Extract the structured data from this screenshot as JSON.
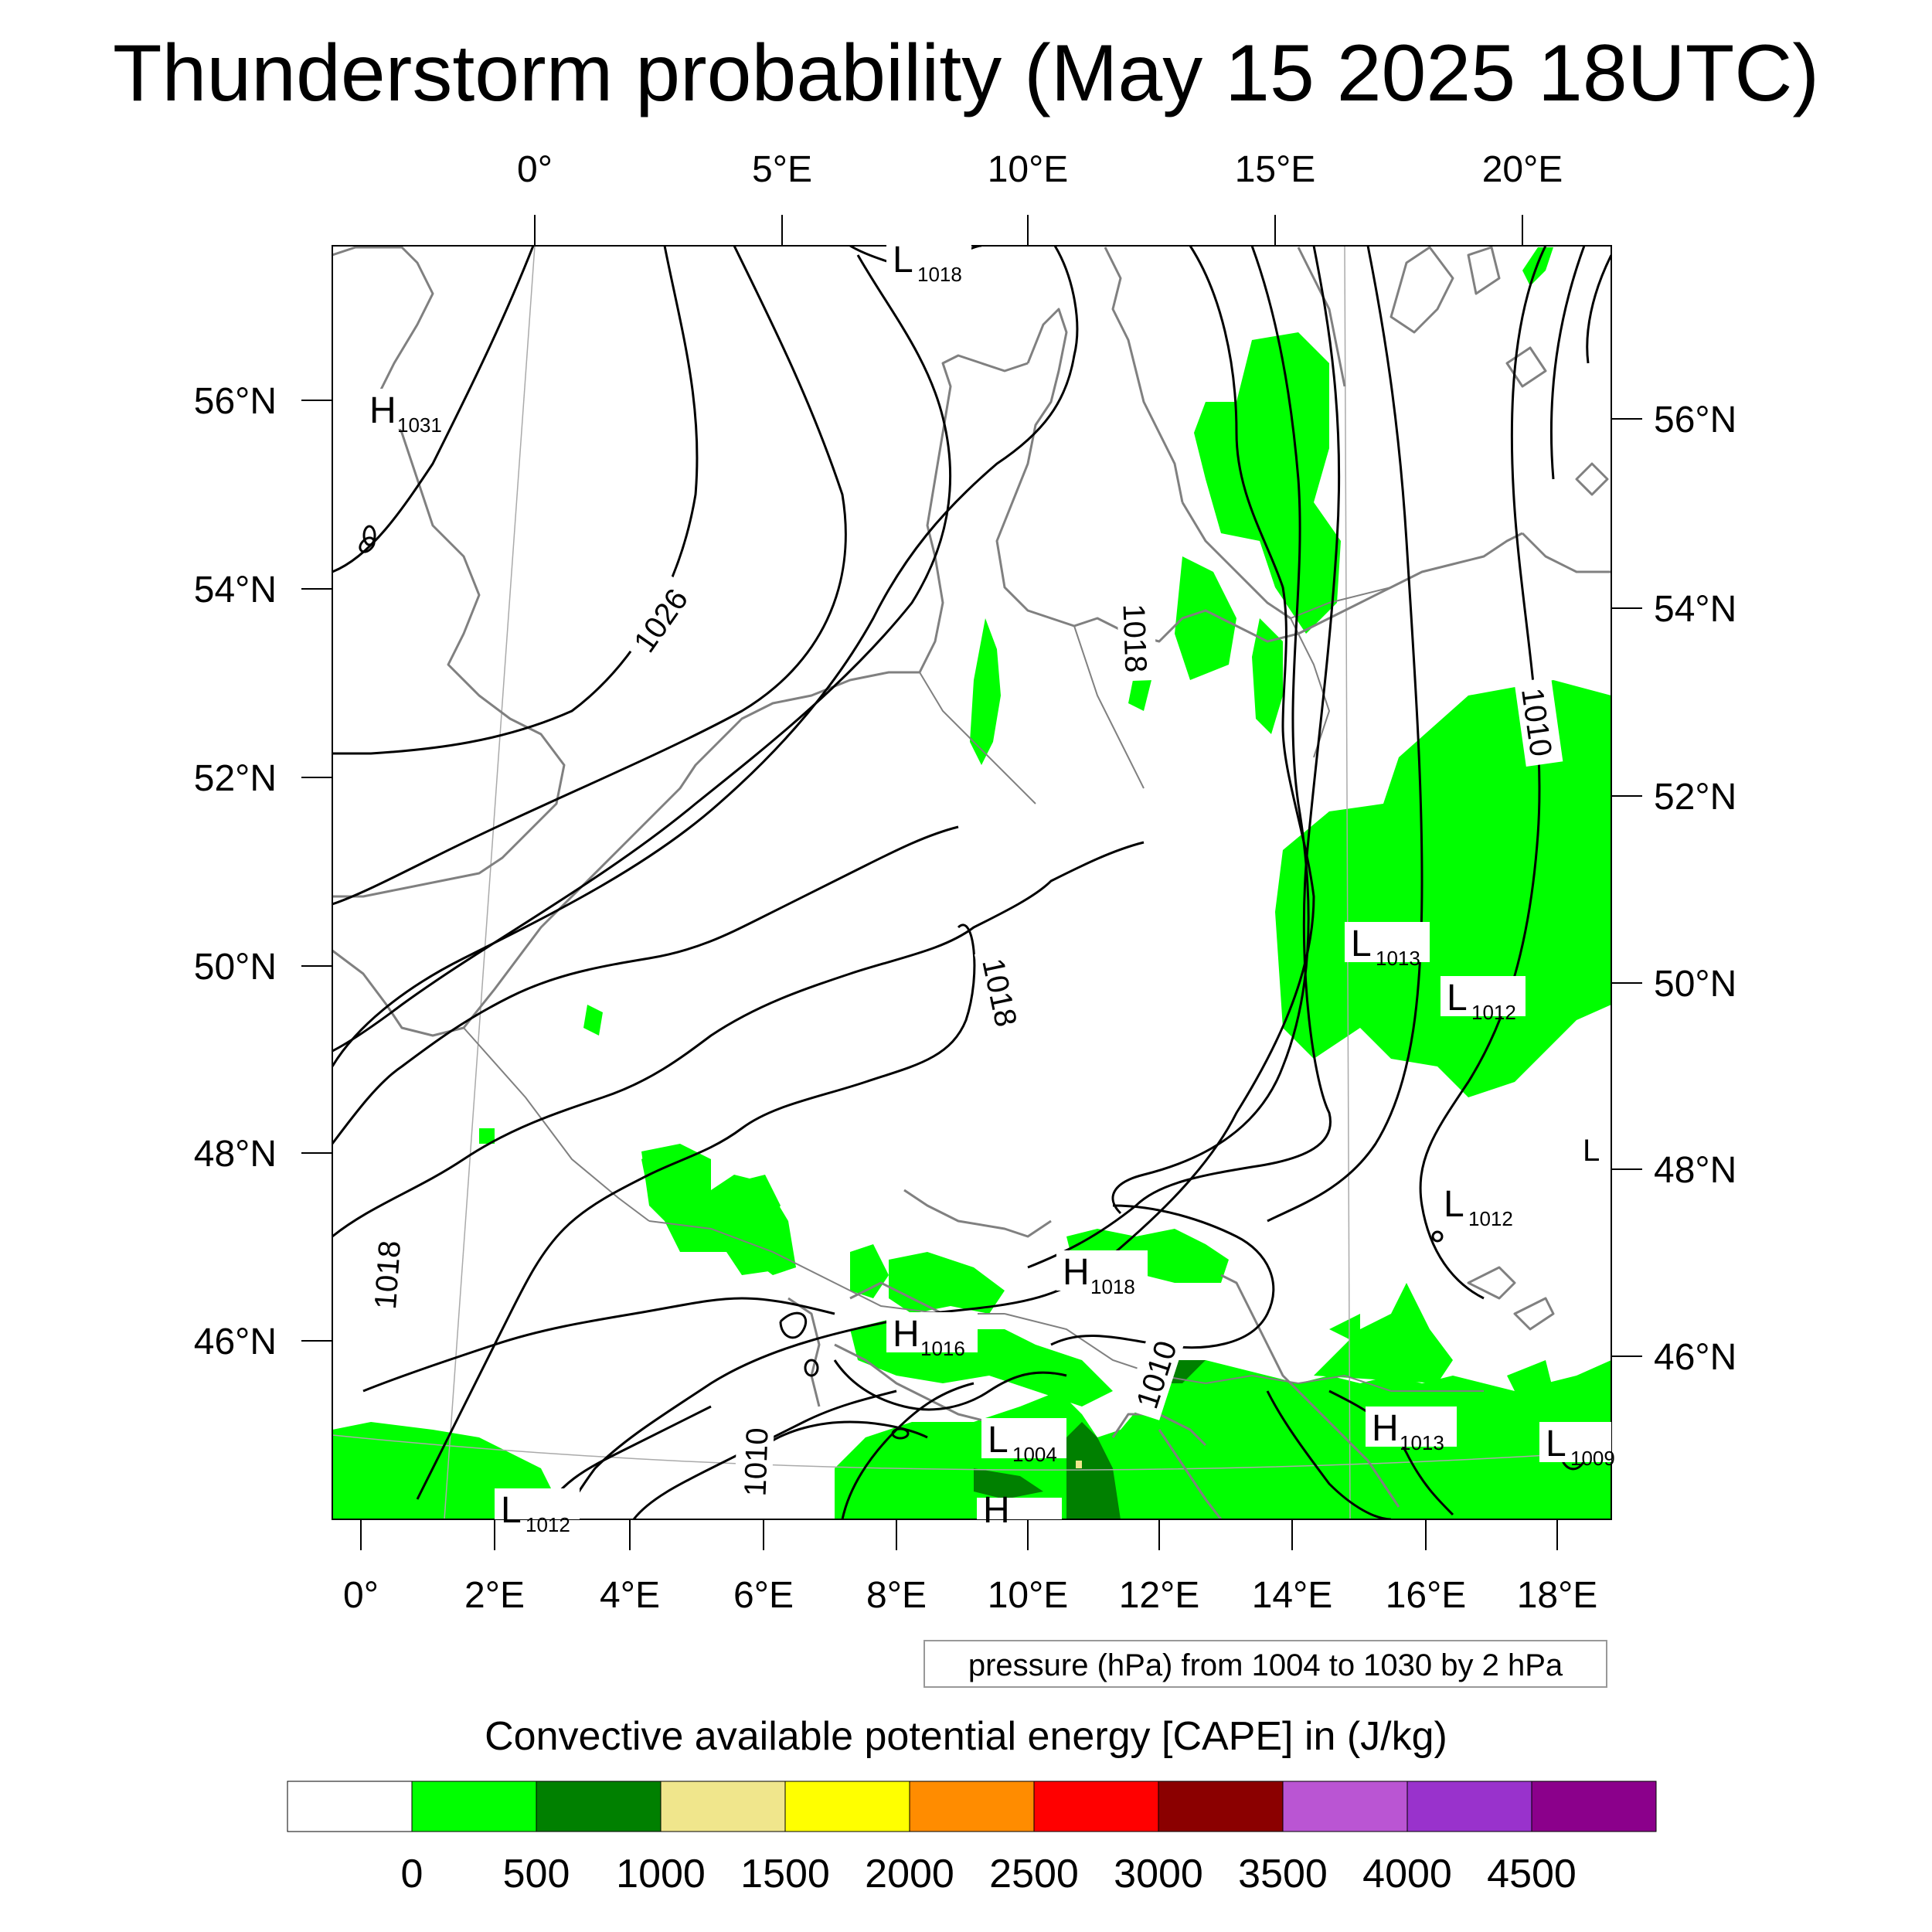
{
  "title": "Thunderstorm probability (May 15 2025 18UTC)",
  "top_lon_labels": [
    "0°",
    "5°E",
    "10°E",
    "15°E",
    "20°E"
  ],
  "bottom_lon_labels": [
    "0°",
    "2°E",
    "4°E",
    "6°E",
    "8°E",
    "10°E",
    "12°E",
    "14°E",
    "16°E",
    "18°E"
  ],
  "left_lat_labels": [
    "56°N",
    "54°N",
    "52°N",
    "50°N",
    "48°N",
    "46°N"
  ],
  "right_lat_labels": [
    "56°N",
    "54°N",
    "52°N",
    "50°N",
    "48°N",
    "46°N"
  ],
  "pressure_note": "pressure (hPa) from 1004 to 1030 by 2 hPa",
  "isobar_labels": [
    "1026",
    "1018",
    "1018",
    "1010",
    "1018",
    "1010",
    "1010"
  ],
  "pressure_centers": [
    {
      "kind": "L",
      "value": "1018"
    },
    {
      "kind": "H",
      "value": "1031"
    },
    {
      "kind": "L",
      "value": "1013"
    },
    {
      "kind": "L",
      "value": "1012"
    },
    {
      "kind": "L",
      "value": "1012"
    },
    {
      "kind": "H",
      "value": "1018"
    },
    {
      "kind": "H",
      "value": "1016"
    },
    {
      "kind": "L",
      "value": "1004"
    },
    {
      "kind": "H",
      "value": "1013"
    },
    {
      "kind": "L",
      "value": "1009"
    },
    {
      "kind": "L",
      "value": "1012"
    },
    {
      "kind": "H",
      "value": ""
    },
    {
      "kind": "L",
      "value": ""
    }
  ],
  "colorbar": {
    "title": "Convective available potential energy [CAPE] in (J/kg)",
    "colors": [
      "#ffffff",
      "#00ff00",
      "#008000",
      "#f0e68c",
      "#ffff00",
      "#ff8c00",
      "#ff0000",
      "#8b0000",
      "#ba55d3",
      "#9932cc",
      "#8b008b"
    ],
    "labels": [
      "0",
      "500",
      "1000",
      "1500",
      "2000",
      "2500",
      "3000",
      "3500",
      "4000",
      "4500"
    ]
  }
}
